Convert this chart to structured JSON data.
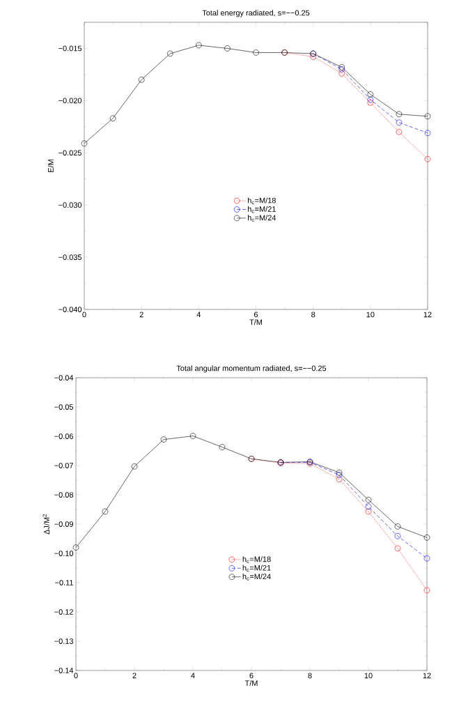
{
  "chart_data": [
    {
      "type": "line",
      "title": "Total energy radiated, s=−−0.25",
      "xlabel": "T/M",
      "ylabel": "E/M",
      "x": [
        0,
        1,
        2,
        3,
        4,
        5,
        6,
        7,
        8,
        9,
        10,
        11,
        12
      ],
      "xlim": [
        0,
        12
      ],
      "ylim": [
        -0.04,
        -0.0125
      ],
      "xticks": [
        0,
        {
          "value": 1,
          "label": null
        },
        2,
        {
          "value": 3,
          "label": null
        },
        4,
        {
          "value": 5,
          "label": null
        },
        6,
        {
          "value": 7,
          "label": null
        },
        8,
        {
          "value": 9,
          "label": null
        },
        10,
        {
          "value": 11,
          "label": null
        },
        12
      ],
      "yticks": [
        {
          "value": -0.04,
          "label": "−0.040"
        },
        {
          "value": -0.0375,
          "label": null
        },
        {
          "value": -0.035,
          "label": "−0.035"
        },
        {
          "value": -0.0325,
          "label": null
        },
        {
          "value": -0.03,
          "label": "−0.030"
        },
        {
          "value": -0.0275,
          "label": null
        },
        {
          "value": -0.025,
          "label": "−0.025"
        },
        {
          "value": -0.0225,
          "label": null
        },
        {
          "value": -0.02,
          "label": "−0.020"
        },
        {
          "value": -0.0175,
          "label": null
        },
        {
          "value": -0.015,
          "label": "−0.015"
        },
        {
          "value": -0.0125,
          "label": null
        }
      ],
      "marker": "circle",
      "legend": "center",
      "grid": false,
      "series": [
        {
          "name": "h$_{c}$=M/18",
          "color": "#ff0000",
          "line_style": "dotted",
          "values": [
            null,
            null,
            null,
            null,
            null,
            null,
            null,
            -0.0154,
            -0.0158,
            -0.0174,
            -0.0202,
            -0.023,
            -0.0256
          ]
        },
        {
          "name": "h$_{c}$=M/21",
          "color": "#0000ff",
          "line_style": "dashed",
          "values": [
            null,
            null,
            null,
            null,
            null,
            null,
            null,
            null,
            -0.0155,
            -0.017,
            -0.0199,
            -0.0221,
            -0.0231
          ]
        },
        {
          "name": "h$_{c}$=M/24",
          "color": "#000000",
          "line_style": "solid",
          "values": [
            -0.0241,
            -0.0217,
            -0.018,
            -0.0155,
            -0.0147,
            -0.015,
            -0.0154,
            -0.0154,
            -0.0155,
            -0.0168,
            -0.0194,
            -0.0213,
            -0.0215
          ]
        }
      ]
    },
    {
      "type": "line",
      "title": "Total angular momentum radiated, s=−−0.25",
      "xlabel": "T/M",
      "ylabel": "ΔJ/M$^{2}$",
      "x": [
        0,
        1,
        2,
        3,
        4,
        5,
        6,
        7,
        8,
        9,
        10,
        11,
        12
      ],
      "xlim": [
        0,
        12
      ],
      "ylim": [
        -0.14,
        -0.04
      ],
      "xticks": [
        0,
        {
          "value": 1,
          "label": null
        },
        2,
        {
          "value": 3,
          "label": null
        },
        4,
        {
          "value": 5,
          "label": null
        },
        6,
        {
          "value": 7,
          "label": null
        },
        8,
        {
          "value": 9,
          "label": null
        },
        10,
        {
          "value": 11,
          "label": null
        },
        12
      ],
      "yticks": [
        {
          "value": -0.14,
          "label": "−0.14"
        },
        {
          "value": -0.135,
          "label": null
        },
        {
          "value": -0.13,
          "label": "−0.13"
        },
        {
          "value": -0.125,
          "label": null
        },
        {
          "value": -0.12,
          "label": "−0.12"
        },
        {
          "value": -0.115,
          "label": null
        },
        {
          "value": -0.11,
          "label": "−0.11"
        },
        {
          "value": -0.105,
          "label": null
        },
        {
          "value": -0.1,
          "label": "−0.10"
        },
        {
          "value": -0.095,
          "label": null
        },
        {
          "value": -0.09,
          "label": "−0.09"
        },
        {
          "value": -0.085,
          "label": null
        },
        {
          "value": -0.08,
          "label": "−0.08"
        },
        {
          "value": -0.075,
          "label": null
        },
        {
          "value": -0.07,
          "label": "−0.07"
        },
        {
          "value": -0.065,
          "label": null
        },
        {
          "value": -0.06,
          "label": "−0.06"
        },
        {
          "value": -0.055,
          "label": null
        },
        {
          "value": -0.05,
          "label": "−0.05"
        },
        {
          "value": -0.045,
          "label": null
        },
        {
          "value": -0.04,
          "label": "−0.04"
        }
      ],
      "marker": "circle",
      "legend": "center",
      "grid": false,
      "series": [
        {
          "name": "h$_{c}$=M/18",
          "color": "#ff0000",
          "line_style": "dotted",
          "values": [
            null,
            null,
            null,
            null,
            null,
            null,
            -0.0677,
            -0.0692,
            -0.0693,
            -0.0747,
            -0.0857,
            -0.0983,
            -0.1126
          ]
        },
        {
          "name": "h$_{c}$=M/21",
          "color": "#0000ff",
          "line_style": "dashed",
          "values": [
            null,
            null,
            null,
            null,
            null,
            null,
            null,
            -0.0689,
            -0.0689,
            -0.0732,
            -0.084,
            -0.0941,
            -0.1017
          ]
        },
        {
          "name": "h$_{c}$=M/24",
          "color": "#000000",
          "line_style": "solid",
          "values": [
            -0.098,
            -0.0857,
            -0.0703,
            -0.0611,
            -0.0599,
            -0.0637,
            -0.0677,
            -0.0689,
            -0.0687,
            -0.0724,
            -0.0817,
            -0.0908,
            -0.0946
          ]
        }
      ]
    }
  ]
}
